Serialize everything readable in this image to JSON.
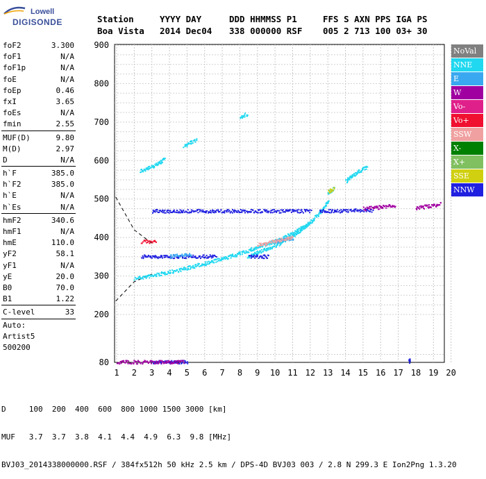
{
  "header": {
    "row1": [
      "Station",
      "YYYY DAY",
      "DDD HHMMSS P1",
      "FFS S AXN PPS IGA PS"
    ],
    "row2": [
      "Boa Vista",
      "2014 Dec04",
      "338 000000 RSF",
      "005 2 713 100 03+ 30"
    ]
  },
  "logo": {
    "line1": "Lowell",
    "line2": "DIGISONDE"
  },
  "params": [
    {
      "name": "foF2",
      "value": "3.300"
    },
    {
      "name": "foF1",
      "value": "N/A"
    },
    {
      "name": "foF1p",
      "value": "N/A"
    },
    {
      "name": "foE",
      "value": "N/A"
    },
    {
      "name": "foEp",
      "value": "0.46"
    },
    {
      "name": "fxI",
      "value": "3.65"
    },
    {
      "name": "foEs",
      "value": "N/A"
    },
    {
      "name": "fmin",
      "value": "2.55"
    },
    {
      "sep": true
    },
    {
      "name": "MUF(D)",
      "value": "9.80"
    },
    {
      "name": "M(D)",
      "value": "2.97"
    },
    {
      "name": "D",
      "value": "N/A"
    },
    {
      "sep": true
    },
    {
      "name": "h`F",
      "value": "385.0"
    },
    {
      "name": "h`F2",
      "value": "385.0"
    },
    {
      "name": "h`E",
      "value": "N/A"
    },
    {
      "name": "h`Es",
      "value": "N/A"
    },
    {
      "sep": true
    },
    {
      "name": "hmF2",
      "value": "340.6"
    },
    {
      "name": "hmF1",
      "value": "N/A"
    },
    {
      "name": "hmE",
      "value": "110.0"
    },
    {
      "name": "yF2",
      "value": "58.1"
    },
    {
      "name": "yF1",
      "value": "N/A"
    },
    {
      "name": "yE",
      "value": "20.0"
    },
    {
      "name": "B0",
      "value": "70.0"
    },
    {
      "name": "B1",
      "value": "1.22"
    },
    {
      "sep": true
    },
    {
      "name": "C-level",
      "value": "33"
    },
    {
      "sep": true
    },
    {
      "text": "Auto:"
    },
    {
      "text": "Artist5"
    },
    {
      "text": "500200"
    }
  ],
  "legend": [
    {
      "label": "NoVal",
      "color": "#808080"
    },
    {
      "label": "NNE",
      "color": "#20d8f0"
    },
    {
      "label": "E",
      "color": "#3aa8f0"
    },
    {
      "label": "W",
      "color": "#a000a0"
    },
    {
      "label": "Vo-",
      "color": "#e0208a"
    },
    {
      "label": "Vo+",
      "color": "#f01030"
    },
    {
      "label": "SSW",
      "color": "#f0a0a0"
    },
    {
      "label": "X-",
      "color": "#008000"
    },
    {
      "label": "X+",
      "color": "#80c060"
    },
    {
      "label": "SSE",
      "color": "#d0d010"
    },
    {
      "label": "NNW",
      "color": "#2020e0"
    }
  ],
  "footer": {
    "d_line": "D     100  200  400  600  800 1000 1500 3000 [km]",
    "muf_line": "MUF   3.7  3.7  3.8  4.1  4.4  4.9  6.3  9.8 [MHz]",
    "info_line": "BVJ03_2014338000000.RSF / 384fx512h 50 kHz 2.5 km / DPS-4D BVJ03 003 / 2.8 N 299.3 E Ion2Png 1.3.20"
  },
  "chart_data": {
    "type": "scatter",
    "title": "",
    "xlabel": "",
    "ylabel": "",
    "x_ticks": [
      1,
      2,
      3,
      4,
      5,
      6,
      7,
      8,
      9,
      10,
      11,
      12,
      13,
      14,
      15,
      16,
      17,
      18,
      19,
      20
    ],
    "y_ticks": [
      80,
      200,
      300,
      400,
      500,
      600,
      700,
      800,
      900
    ],
    "xlim": [
      1,
      20
    ],
    "ylim": [
      80,
      900
    ],
    "grid": true,
    "legend_position": "right",
    "series": [
      {
        "name": "NNE",
        "color": "#20d8f0",
        "segments": [
          [
            [
              2.0,
              295
            ],
            [
              3.0,
              302
            ],
            [
              4.0,
              312
            ],
            [
              5.0,
              322
            ],
            [
              6.0,
              334
            ],
            [
              7.0,
              346
            ],
            [
              8.0,
              360
            ],
            [
              9.0,
              376
            ],
            [
              10.0,
              392
            ],
            [
              11.0,
              412
            ],
            [
              11.8,
              435
            ]
          ],
          [
            [
              8.4,
              350
            ],
            [
              9.0,
              362
            ],
            [
              10.0,
              380
            ],
            [
              11.0,
              405
            ],
            [
              12.0,
              442
            ],
            [
              12.6,
              470
            ],
            [
              13.0,
              495
            ]
          ],
          [
            [
              2.3,
              575
            ],
            [
              3.0,
              585
            ],
            [
              3.7,
              605
            ]
          ],
          [
            [
              4.8,
              640
            ],
            [
              5.5,
              655
            ]
          ],
          [
            [
              8.0,
              715
            ],
            [
              8.4,
              722
            ]
          ],
          [
            [
              14.0,
              548
            ],
            [
              14.8,
              575
            ],
            [
              15.2,
              585
            ]
          ],
          [
            [
              13.0,
              515
            ],
            [
              13.3,
              530
            ]
          ]
        ]
      },
      {
        "name": "NNW",
        "color": "#2020e0",
        "segments": [
          [
            [
              3.0,
              470
            ],
            [
              12.0,
              470
            ]
          ],
          [
            [
              12.5,
              470
            ],
            [
              15.5,
              472
            ]
          ],
          [
            [
              2.4,
              352
            ],
            [
              6.6,
              352
            ]
          ],
          [
            [
              8.5,
              352
            ],
            [
              9.6,
              352
            ]
          ],
          [
            [
              3.0,
              82
            ],
            [
              5.0,
              82
            ]
          ],
          [
            [
              17.6,
              80
            ],
            [
              17.6,
              92
            ]
          ]
        ]
      },
      {
        "name": "W",
        "color": "#a000a0",
        "segments": [
          [
            [
              15.0,
              476
            ],
            [
              16.8,
              484
            ]
          ],
          [
            [
              18.0,
              478
            ],
            [
              19.4,
              488
            ]
          ],
          [
            [
              1.0,
              82
            ],
            [
              4.8,
              82
            ]
          ]
        ]
      },
      {
        "name": "Vo+",
        "color": "#f01030",
        "segments": [
          [
            [
              2.4,
              390
            ],
            [
              3.2,
              392
            ]
          ]
        ]
      },
      {
        "name": "E",
        "color": "#3aa8f0",
        "segments": [
          [
            [
              4.0,
              352
            ],
            [
              5.2,
              358
            ]
          ],
          [
            [
              10.0,
              390
            ],
            [
              11.0,
              400
            ]
          ]
        ]
      },
      {
        "name": "SSW",
        "color": "#f0a0a0",
        "segments": [
          [
            [
              9.0,
              382
            ],
            [
              11.0,
              402
            ]
          ]
        ]
      },
      {
        "name": "SSE",
        "color": "#d0d010",
        "segments": [
          [
            [
              13.0,
              522
            ],
            [
              13.3,
              528
            ]
          ]
        ]
      }
    ],
    "annotations": [
      {
        "type": "dashed-curve",
        "points": [
          [
            0.95,
            505
          ],
          [
            2.0,
            420
          ],
          [
            3.0,
            385
          ]
        ]
      },
      {
        "type": "dashed-curve",
        "points": [
          [
            0.95,
            235
          ],
          [
            2.0,
            285
          ],
          [
            3.0,
            305
          ]
        ]
      }
    ]
  }
}
